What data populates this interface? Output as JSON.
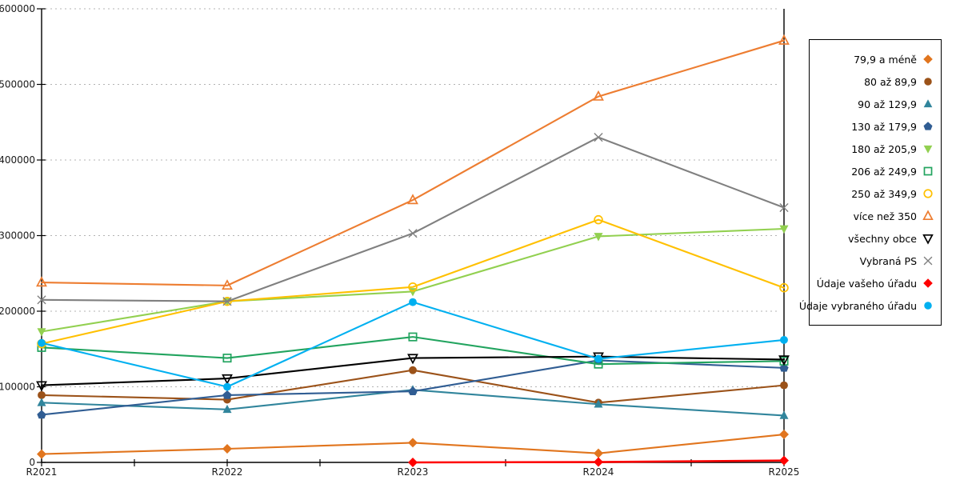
{
  "chart_data": {
    "type": "line",
    "title": "",
    "xlabel": "",
    "ylabel": "",
    "categories": [
      "R2021",
      "R2022",
      "R2023",
      "R2024",
      "R2025"
    ],
    "y_tick_labels": [
      "0",
      "100000",
      "200000",
      "300000",
      "400000",
      "500000",
      "600000"
    ],
    "ylim": [
      0,
      600000
    ],
    "ytick_step": 100000,
    "grid": "horizontal-dotted",
    "grid_color": "#b3b3b3",
    "axis_color": "#000000",
    "legend_position": "right",
    "series": [
      {
        "name": "79,9 a méně",
        "color": "#E1751E",
        "marker": "diamond",
        "filled": true,
        "values": [
          11000,
          18000,
          26000,
          12000,
          37000
        ]
      },
      {
        "name": "80 až 89,9",
        "color": "#9B5219",
        "marker": "circle",
        "filled": true,
        "values": [
          89000,
          83000,
          122000,
          79000,
          102000
        ]
      },
      {
        "name": "90 až 129,9",
        "color": "#31859C",
        "marker": "triangle-up",
        "filled": true,
        "values": [
          79000,
          70000,
          96000,
          77000,
          62000
        ]
      },
      {
        "name": "130 až 179,9",
        "color": "#305D93",
        "marker": "pentagon",
        "filled": true,
        "values": [
          63000,
          89000,
          94000,
          135000,
          125000
        ]
      },
      {
        "name": "180 až 205,9",
        "color": "#92D050",
        "marker": "triangle-down",
        "filled": true,
        "values": [
          173000,
          213000,
          226000,
          299000,
          309000
        ]
      },
      {
        "name": "206 až 249,9",
        "color": "#22A45F",
        "marker": "square",
        "filled": false,
        "values": [
          152000,
          138000,
          166000,
          130000,
          134000
        ]
      },
      {
        "name": "250 až 349,9",
        "color": "#FFC000",
        "marker": "circle",
        "filled": false,
        "values": [
          157000,
          213000,
          232000,
          321000,
          231000
        ]
      },
      {
        "name": "více než 350",
        "color": "#ED7D31",
        "marker": "triangle-up",
        "filled": false,
        "values": [
          238000,
          234000,
          347000,
          484000,
          558000
        ]
      },
      {
        "name": "všechny obce",
        "color": "#000000",
        "marker": "triangle-down",
        "filled": false,
        "values": [
          102000,
          111000,
          138000,
          140000,
          136000
        ]
      },
      {
        "name": "Vybraná PS",
        "color": "#808080",
        "marker": "x",
        "filled": false,
        "values": [
          215000,
          213000,
          303000,
          430000,
          337000
        ]
      },
      {
        "name": "Údaje vašeho úřadu",
        "color": "#FF0000",
        "marker": "diamond",
        "filled": true,
        "values": [
          null,
          null,
          0,
          500,
          2500
        ]
      },
      {
        "name": "Údaje vybraného úřadu",
        "color": "#00B0F0",
        "marker": "circle",
        "filled": true,
        "values": [
          158000,
          100000,
          212000,
          137000,
          162000
        ]
      }
    ]
  }
}
